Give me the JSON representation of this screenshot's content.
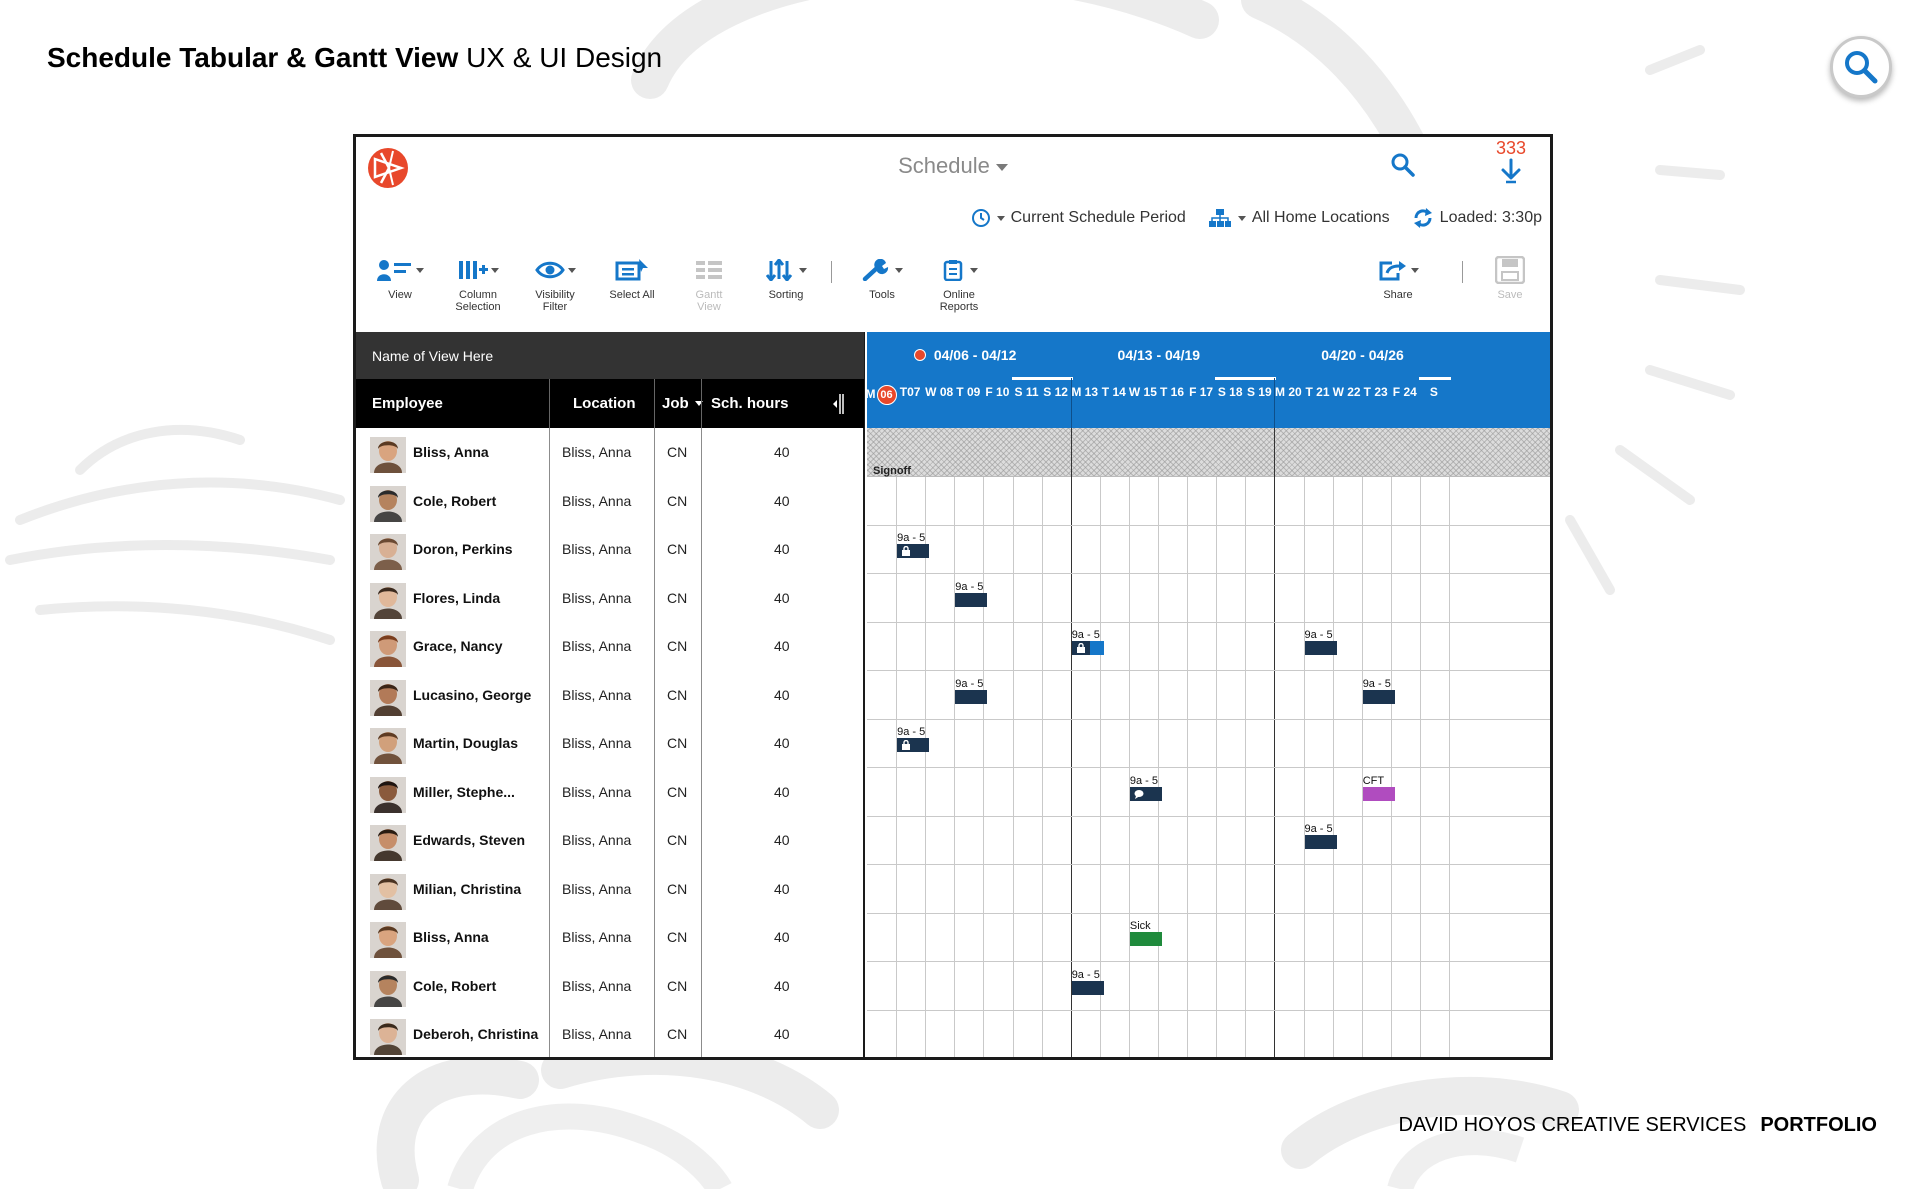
{
  "page": {
    "title_bold": "Schedule Tabular & Gantt View",
    "title_light": "UX & UI Design",
    "footer_light": "DAVID HOYOS CREATIVE SERVICES",
    "footer_bold": "PORTFOLIO"
  },
  "app": {
    "title": "Schedule",
    "notification_count": "333",
    "info": {
      "period": "Current Schedule Period",
      "locations": "All Home Locations",
      "loaded": "Loaded: 3:30p"
    },
    "toolbar": {
      "view": "View",
      "column_selection_1": "Column",
      "column_selection_2": "Selection",
      "visibility_filter_1": "Visibility",
      "visibility_filter_2": "Filter",
      "select_all": "Select All",
      "gantt_view_1": "Gantt",
      "gantt_view_2": "View",
      "sorting": "Sorting",
      "tools": "Tools",
      "online_reports_1": "Online",
      "online_reports_2": "Reports",
      "share": "Share",
      "save": "Save"
    },
    "table": {
      "view_name": "Name of View Here",
      "headers": {
        "employee": "Employee",
        "location": "Location",
        "job": "Job",
        "hours": "Sch. hours"
      },
      "rows": [
        {
          "name": "Bliss, Anna",
          "location": "Bliss, Anna",
          "job": "CN",
          "hours": "40"
        },
        {
          "name": "Cole, Robert",
          "location": "Bliss, Anna",
          "job": "CN",
          "hours": "40"
        },
        {
          "name": "Doron, Perkins",
          "location": "Bliss, Anna",
          "job": "CN",
          "hours": "40"
        },
        {
          "name": "Flores, Linda",
          "location": "Bliss, Anna",
          "job": "CN",
          "hours": "40"
        },
        {
          "name": "Grace, Nancy",
          "location": "Bliss, Anna",
          "job": "CN",
          "hours": "40"
        },
        {
          "name": "Lucasino, George",
          "location": "Bliss, Anna",
          "job": "CN",
          "hours": "40"
        },
        {
          "name": "Martin, Douglas",
          "location": "Bliss, Anna",
          "job": "CN",
          "hours": "40"
        },
        {
          "name": "Miller, Stephe...",
          "location": "Bliss, Anna",
          "job": "CN",
          "hours": "40"
        },
        {
          "name": "Edwards, Steven",
          "location": "Bliss, Anna",
          "job": "CN",
          "hours": "40"
        },
        {
          "name": "Milian, Christina",
          "location": "Bliss, Anna",
          "job": "CN",
          "hours": "40"
        },
        {
          "name": "Bliss, Anna",
          "location": "Bliss, Anna",
          "job": "CN",
          "hours": "40"
        },
        {
          "name": "Cole, Robert",
          "location": "Bliss, Anna",
          "job": "CN",
          "hours": "40"
        },
        {
          "name": "Deberoh, Christina",
          "location": "Bliss, Anna",
          "job": "CN",
          "hours": "40"
        }
      ]
    },
    "gantt": {
      "weeks": [
        "04/06 - 04/12",
        "04/13 - 04/19",
        "04/20 - 04/26"
      ],
      "days": [
        "M",
        "T07",
        "W 08",
        "T 09",
        "F 10",
        "S 11",
        "S 12",
        "M 13",
        "T 14",
        "W 15",
        "T 16",
        "F 17",
        "S 18",
        "S 19",
        "M 20",
        "T 21",
        "W 22",
        "T 23",
        "F 24",
        "S"
      ],
      "today_label": "06",
      "signoff": "Signoff",
      "shifts": [
        {
          "row": 2,
          "day": 1,
          "label": "9a - 5",
          "color": "#1b344f",
          "icon": "lock-icon"
        },
        {
          "row": 3,
          "day": 3,
          "label": "9a - 5",
          "color": "#1b344f"
        },
        {
          "row": 4,
          "day": 7,
          "label": "9a - 5",
          "color": "#1b344f",
          "accent": "#1577c9",
          "icon": "lock-icon"
        },
        {
          "row": 4,
          "day": 15,
          "label": "9a - 5",
          "color": "#1b344f"
        },
        {
          "row": 5,
          "day": 3,
          "label": "9a - 5",
          "color": "#1b344f"
        },
        {
          "row": 5,
          "day": 17,
          "label": "9a - 5",
          "color": "#1b344f"
        },
        {
          "row": 6,
          "day": 1,
          "label": "9a - 5",
          "color": "#1b344f",
          "icon": "lock-icon"
        },
        {
          "row": 7,
          "day": 9,
          "label": "9a - 5",
          "color": "#1b344f",
          "icon": "comment-icon"
        },
        {
          "row": 7,
          "day": 17,
          "label": "CFT",
          "color": "#b04cbf"
        },
        {
          "row": 8,
          "day": 15,
          "label": "9a - 5",
          "color": "#1b344f"
        },
        {
          "row": 10,
          "day": 9,
          "label": "Sick",
          "color": "#1f8a3c"
        },
        {
          "row": 11,
          "day": 7,
          "label": "9a - 5",
          "color": "#1b344f"
        }
      ]
    },
    "colors": {
      "accent": "#1577c9",
      "brand": "#e8482b",
      "header_dark": "#333333"
    }
  }
}
